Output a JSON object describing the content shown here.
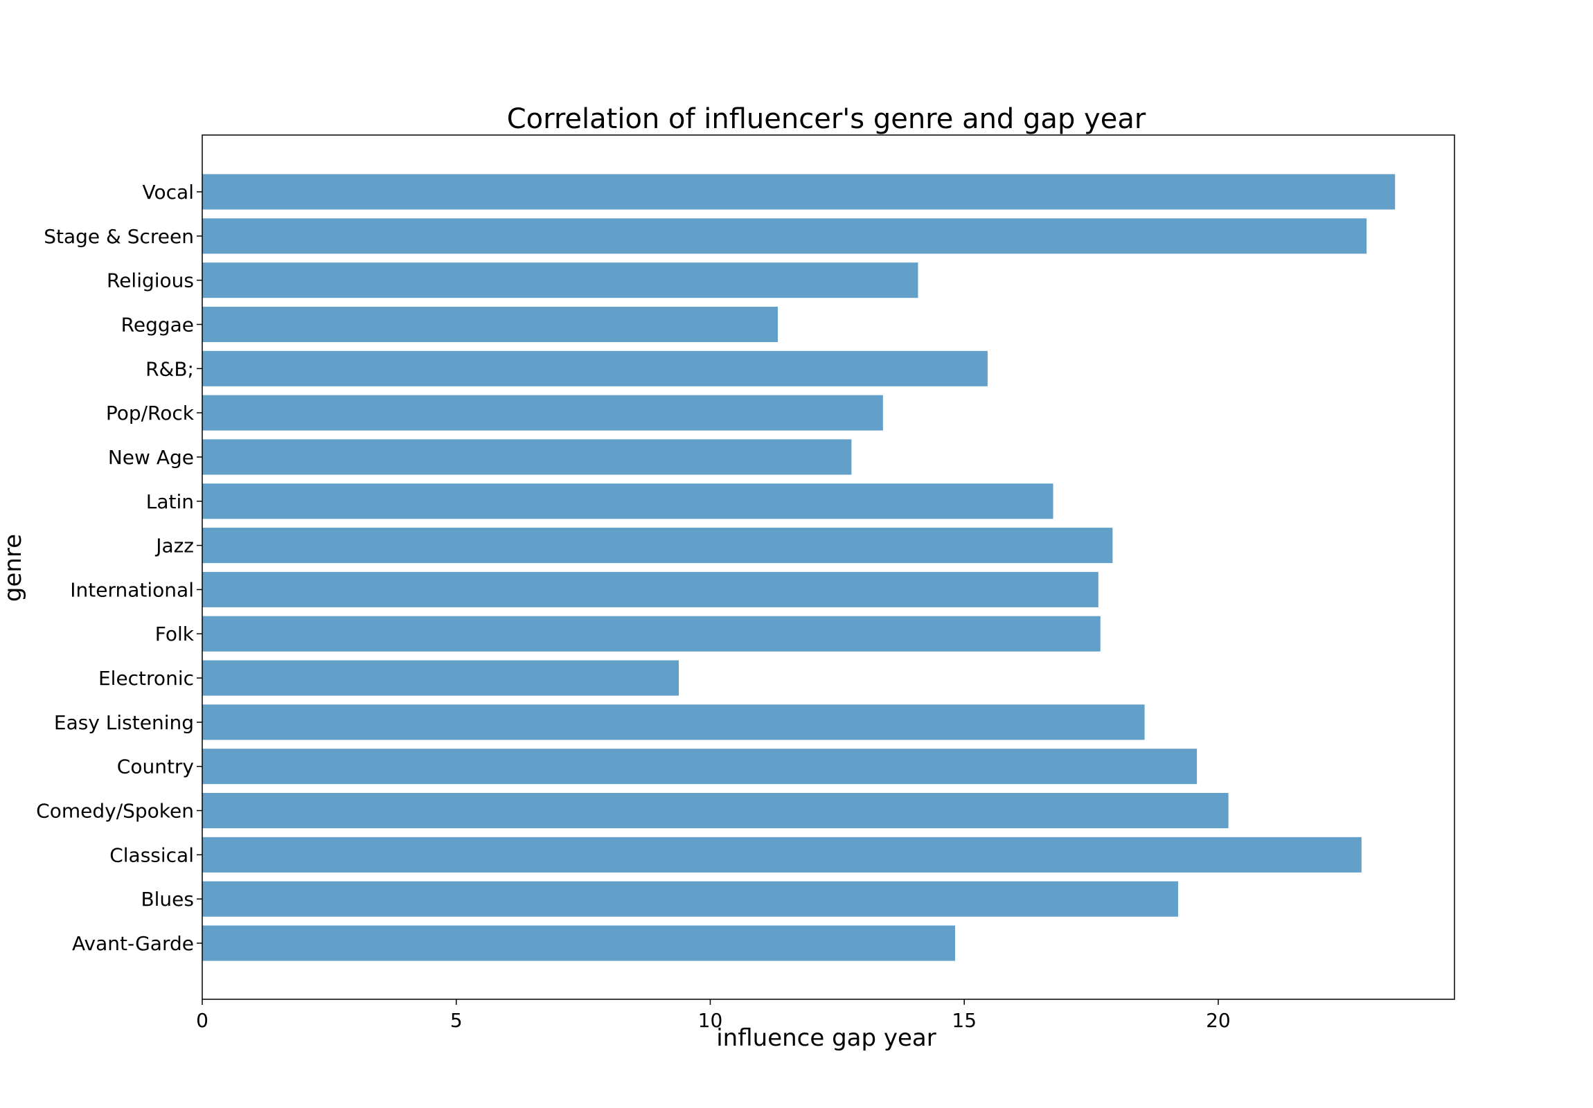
{
  "chart_data": {
    "type": "bar",
    "orientation": "horizontal",
    "title": "Correlation of influencer's genre and gap year",
    "xlabel": "influence gap year",
    "ylabel": "genre",
    "categories": [
      "Avant-Garde",
      "Blues",
      "Classical",
      "Comedy/Spoken",
      "Country",
      "Easy Listening",
      "Electronic",
      "Folk",
      "International",
      "Jazz",
      "Latin",
      "New Age",
      "Pop/Rock",
      "R&B;",
      "Reggae",
      "Religious",
      "Stage & Screen",
      "Vocal"
    ],
    "values": [
      14.82,
      19.21,
      22.82,
      20.2,
      19.58,
      18.55,
      9.38,
      17.68,
      17.64,
      17.92,
      16.75,
      12.78,
      13.4,
      15.46,
      11.33,
      14.09,
      22.92,
      23.48
    ],
    "xlim": [
      0,
      24.65
    ],
    "xticks": [
      0,
      5,
      10,
      15,
      20
    ],
    "grid": false,
    "colors": {
      "bar": "#62a0ca"
    }
  }
}
